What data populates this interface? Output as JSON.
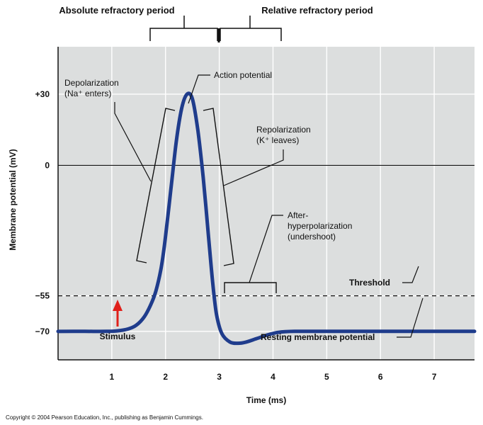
{
  "chart_data": {
    "type": "line",
    "title": "",
    "xlabel": "Time (ms)",
    "ylabel": "Membrane potential (mV)",
    "x_ticks": [
      1,
      2,
      3,
      4,
      5,
      6,
      7
    ],
    "x_tick_labels": [
      "1",
      "2",
      "3",
      "4",
      "5",
      "6",
      "7"
    ],
    "y_ticks": [
      30,
      0,
      -55,
      -70
    ],
    "y_tick_labels": [
      "+30",
      "0",
      "−55",
      "−70"
    ],
    "xlim": [
      0,
      7.75
    ],
    "ylim": [
      -82,
      50
    ],
    "grid": true,
    "series": [
      {
        "name": "",
        "color": "#1f3c8c",
        "points": [
          [
            0,
            -70
          ],
          [
            0.5,
            -70
          ],
          [
            0.9,
            -70
          ],
          [
            1.1,
            -69.8
          ],
          [
            1.3,
            -69
          ],
          [
            1.45,
            -67.5
          ],
          [
            1.6,
            -64
          ],
          [
            1.72,
            -59
          ],
          [
            1.82,
            -53
          ],
          [
            1.92,
            -43
          ],
          [
            2.0,
            -30
          ],
          [
            2.1,
            -10
          ],
          [
            2.2,
            10
          ],
          [
            2.3,
            24
          ],
          [
            2.4,
            30
          ],
          [
            2.5,
            28
          ],
          [
            2.6,
            15
          ],
          [
            2.7,
            -5
          ],
          [
            2.8,
            -30
          ],
          [
            2.88,
            -50
          ],
          [
            2.95,
            -63
          ],
          [
            3.05,
            -71
          ],
          [
            3.2,
            -74.5
          ],
          [
            3.35,
            -75
          ],
          [
            3.5,
            -74.5
          ],
          [
            3.7,
            -73
          ],
          [
            3.9,
            -71.5
          ],
          [
            4.1,
            -70.4
          ],
          [
            4.4,
            -70
          ],
          [
            5.0,
            -70
          ],
          [
            6.0,
            -70
          ],
          [
            7.75,
            -70
          ]
        ]
      }
    ],
    "threshold": {
      "value": -55,
      "label": "Threshold",
      "style": "dashed"
    },
    "zero_line": {
      "value": 0
    },
    "stimulus": {
      "x": 1.1,
      "label": "Stimulus",
      "color": "#e0201b"
    },
    "periods": [
      {
        "label": "Absolute refractory period",
        "x_start": 1.7,
        "x_end": 3.0
      },
      {
        "label": "Relative refractory period",
        "x_start": 3.0,
        "x_end": 4.15
      }
    ],
    "annotations": [
      {
        "id": "depol",
        "lines": [
          "Depolarization",
          "(Na⁺ enters)"
        ]
      },
      {
        "id": "ap",
        "lines": [
          "Action potential"
        ]
      },
      {
        "id": "repol",
        "lines": [
          "Repolarization",
          "(K⁺ leaves)"
        ]
      },
      {
        "id": "ahp",
        "lines": [
          "After-",
          "hyperpolarization",
          "(undershoot)"
        ]
      },
      {
        "id": "rmp",
        "lines": [
          "Resting membrane potential"
        ]
      }
    ]
  },
  "copyright": "Copyright © 2004 Pearson Education, Inc., publishing as Benjamin Cummings."
}
